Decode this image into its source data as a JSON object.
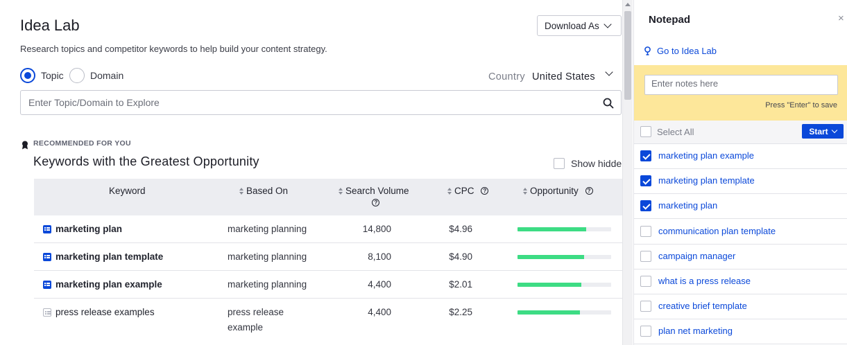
{
  "header": {
    "title": "Idea Lab",
    "subtitle": "Research topics and competitor keywords to help build your content strategy.",
    "download_label": "Download As"
  },
  "mode": {
    "topic_label": "Topic",
    "domain_label": "Domain",
    "selected": "Topic"
  },
  "country": {
    "label": "Country",
    "value": "United States"
  },
  "search": {
    "placeholder": "Enter Topic/Domain to Explore",
    "value": ""
  },
  "recommended": {
    "label": "RECOMMENDED FOR YOU",
    "title": "Keywords with the Greatest Opportunity",
    "show_hidden_label": "Show hidden"
  },
  "table": {
    "columns": [
      "Keyword",
      "Based On",
      "Search Volume",
      "CPC",
      "Opportunity"
    ],
    "rows": [
      {
        "keyword": "marketing plan",
        "based_on": "marketing planning",
        "volume": "14,800",
        "cpc": "$4.96",
        "opportunity": 0.73,
        "saved": true
      },
      {
        "keyword": "marketing plan template",
        "based_on": "marketing planning",
        "volume": "8,100",
        "cpc": "$4.90",
        "opportunity": 0.71,
        "saved": true
      },
      {
        "keyword": "marketing plan example",
        "based_on": "marketing planning",
        "volume": "4,400",
        "cpc": "$2.01",
        "opportunity": 0.68,
        "saved": true
      },
      {
        "keyword": "press release examples",
        "based_on_line1": "press release",
        "based_on_line2": "example",
        "volume": "4,400",
        "cpc": "$2.25",
        "opportunity": 0.67,
        "saved": false
      }
    ]
  },
  "notepad": {
    "title": "Notepad",
    "close_glyph": "×",
    "link_label": "Go to Idea Lab",
    "note_placeholder": "Enter notes here",
    "hint": "Press \"Enter\" to save",
    "select_all_label": "Select All",
    "start_label": "Start",
    "items": [
      {
        "label": "marketing plan example",
        "checked": true
      },
      {
        "label": "marketing plan template",
        "checked": true
      },
      {
        "label": "marketing plan",
        "checked": true
      },
      {
        "label": "communication plan template",
        "checked": false
      },
      {
        "label": "campaign manager",
        "checked": false
      },
      {
        "label": "what is a press release",
        "checked": false
      },
      {
        "label": "creative brief template",
        "checked": false
      },
      {
        "label": "plan net marketing",
        "checked": false
      }
    ]
  },
  "colors": {
    "accent": "#0a48d9",
    "opportunity_bar": "#3ddc84",
    "note_background": "#fde79a"
  }
}
